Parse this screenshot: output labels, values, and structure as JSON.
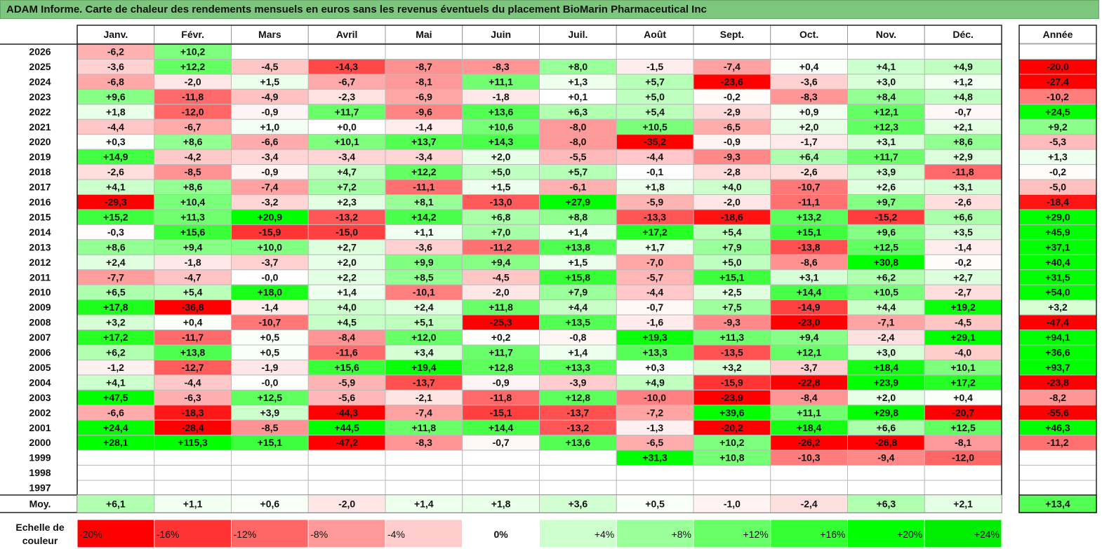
{
  "title": "ADAM Informe. Carte de chaleur des rendements mensuels en euros sans les revenus éventuels du placement BioMarin Pharmaceutical Inc",
  "chart_data": {
    "type": "heatmap",
    "title": "ADAM Informe. Carte de chaleur des rendements mensuels en euros sans les revenus éventuels du placement BioMarin Pharmaceutical Inc",
    "months": [
      "Janv.",
      "Févr.",
      "Mars",
      "Avril",
      "Mai",
      "Juin",
      "Juil.",
      "Août",
      "Sept.",
      "Oct.",
      "Nov.",
      "Déc."
    ],
    "year_header": "Année",
    "rows": [
      {
        "year": "2026",
        "values": [
          "-6,2",
          "+10,2",
          "",
          "",
          "",
          "",
          "",
          "",
          "",
          "",
          "",
          ""
        ],
        "annual": ""
      },
      {
        "year": "2025",
        "values": [
          "-3,6",
          "+12,2",
          "-4,5",
          "-14,3",
          "-8,7",
          "-8,3",
          "+8,0",
          "-1,5",
          "-7,4",
          "+0,4",
          "+4,1",
          "+4,9"
        ],
        "annual": "-20,0"
      },
      {
        "year": "2024",
        "values": [
          "-6,8",
          "-2,0",
          "+1,5",
          "-6,7",
          "-8,1",
          "+11,1",
          "+1,3",
          "+5,7",
          "-23,6",
          "-3,6",
          "+3,0",
          "+1,2"
        ],
        "annual": "-27,4"
      },
      {
        "year": "2023",
        "values": [
          "+9,6",
          "-11,8",
          "-4,9",
          "-2,3",
          "-6,9",
          "-1,8",
          "+0,1",
          "+5,0",
          "-0,2",
          "-8,3",
          "+8,4",
          "+4,8"
        ],
        "annual": "-10,2"
      },
      {
        "year": "2022",
        "values": [
          "+1,8",
          "-12,0",
          "-0,9",
          "+11,7",
          "-9,6",
          "+13,6",
          "+6,3",
          "+5,4",
          "-2,9",
          "+0,9",
          "+12,1",
          "-0,7"
        ],
        "annual": "+24,5"
      },
      {
        "year": "2021",
        "values": [
          "-4,4",
          "-6,7",
          "+1,0",
          "+0,0",
          "-1,4",
          "+10,6",
          "-8,0",
          "+10,5",
          "-6,5",
          "+2,0",
          "+12,3",
          "+2,1"
        ],
        "annual": "+9,2"
      },
      {
        "year": "2020",
        "values": [
          "+0,3",
          "+8,6",
          "-6,6",
          "+10,1",
          "+13,7",
          "+14,3",
          "-8,0",
          "-35,2",
          "-0,9",
          "-1,7",
          "+3,1",
          "+8,6"
        ],
        "annual": "-5,3"
      },
      {
        "year": "2019",
        "values": [
          "+14,9",
          "-4,2",
          "-3,4",
          "-3,4",
          "-3,4",
          "+2,0",
          "-5,5",
          "-4,4",
          "-9,3",
          "+6,4",
          "+11,7",
          "+2,9"
        ],
        "annual": "+1,3"
      },
      {
        "year": "2018",
        "values": [
          "-2,6",
          "-8,5",
          "-0,9",
          "+4,7",
          "+12,2",
          "+5,0",
          "+5,7",
          "-0,1",
          "-2,8",
          "-2,6",
          "+3,9",
          "-11,8"
        ],
        "annual": "-0,2"
      },
      {
        "year": "2017",
        "values": [
          "+4,1",
          "+8,6",
          "-7,4",
          "+7,2",
          "-11,1",
          "+1,5",
          "-6,1",
          "+1,8",
          "+4,0",
          "-10,7",
          "+2,6",
          "+3,1"
        ],
        "annual": "-5,0"
      },
      {
        "year": "2016",
        "values": [
          "-29,3",
          "+10,4",
          "-3,2",
          "+2,3",
          "+8,1",
          "-13,0",
          "+27,9",
          "-5,9",
          "-2,0",
          "-11,1",
          "+9,7",
          "-2,6"
        ],
        "annual": "-18,4"
      },
      {
        "year": "2015",
        "values": [
          "+15,2",
          "+11,3",
          "+20,9",
          "-13,2",
          "+14,2",
          "+6,8",
          "+8,8",
          "-13,3",
          "-18,6",
          "+13,2",
          "-15,2",
          "+6,6"
        ],
        "annual": "+29,0"
      },
      {
        "year": "2014",
        "values": [
          "-0,3",
          "+15,6",
          "-15,9",
          "-15,0",
          "+1,1",
          "+7,0",
          "+1,4",
          "+17,2",
          "+5,4",
          "+15,1",
          "+9,6",
          "+3,5"
        ],
        "annual": "+45,9"
      },
      {
        "year": "2013",
        "values": [
          "+8,6",
          "+9,4",
          "+10,0",
          "+2,7",
          "-3,6",
          "-11,2",
          "+13,8",
          "+1,7",
          "+7,9",
          "-13,8",
          "+12,5",
          "-1,4"
        ],
        "annual": "+37,1"
      },
      {
        "year": "2012",
        "values": [
          "+2,4",
          "-1,8",
          "-3,7",
          "+2,0",
          "+9,9",
          "+9,4",
          "+1,5",
          "-7,0",
          "+5,0",
          "-8,6",
          "+30,8",
          "-0,2"
        ],
        "annual": "+40,4"
      },
      {
        "year": "2011",
        "values": [
          "-7,7",
          "-4,7",
          "-0,0",
          "+2,2",
          "+8,5",
          "-4,5",
          "+15,8",
          "-5,7",
          "+15,1",
          "+3,1",
          "+6,2",
          "+2,7"
        ],
        "annual": "+31,5"
      },
      {
        "year": "2010",
        "values": [
          "+6,5",
          "+5,4",
          "+18,0",
          "+1,4",
          "-10,1",
          "-2,0",
          "+7,9",
          "-4,4",
          "+2,5",
          "+14,4",
          "+10,5",
          "-2,7"
        ],
        "annual": "+54,0"
      },
      {
        "year": "2009",
        "values": [
          "+17,8",
          "-36,8",
          "-1,4",
          "+4,0",
          "+2,4",
          "+11,8",
          "+4,4",
          "-0,7",
          "+7,5",
          "-14,9",
          "+4,4",
          "+19,2"
        ],
        "annual": "+3,2"
      },
      {
        "year": "2008",
        "values": [
          "+3,2",
          "+0,4",
          "-10,7",
          "+4,5",
          "+5,1",
          "-25,3",
          "+13,5",
          "-1,6",
          "-9,3",
          "-23,0",
          "-7,1",
          "-4,5"
        ],
        "annual": "-47,4"
      },
      {
        "year": "2007",
        "values": [
          "+17,2",
          "-11,7",
          "+0,5",
          "-8,4",
          "+12,0",
          "+0,2",
          "-0,8",
          "+19,3",
          "+11,3",
          "+9,4",
          "-2,4",
          "+29,1"
        ],
        "annual": "+94,1"
      },
      {
        "year": "2006",
        "values": [
          "+6,2",
          "+13,8",
          "+0,5",
          "-11,6",
          "+3,4",
          "+11,7",
          "+1,4",
          "+13,3",
          "-13,5",
          "+12,1",
          "+3,0",
          "-4,0"
        ],
        "annual": "+36,6"
      },
      {
        "year": "2005",
        "values": [
          "-1,2",
          "-12,7",
          "-1,9",
          "+15,6",
          "+19,4",
          "+12,8",
          "+13,3",
          "+0,3",
          "+3,2",
          "-3,7",
          "+18,4",
          "+10,1"
        ],
        "annual": "+93,7"
      },
      {
        "year": "2004",
        "values": [
          "+4,1",
          "-4,4",
          "-0,0",
          "-5,9",
          "-13,7",
          "-0,9",
          "-3,9",
          "+4,9",
          "-15,9",
          "-22,8",
          "+23,9",
          "+17,2"
        ],
        "annual": "-23,8"
      },
      {
        "year": "2003",
        "values": [
          "+47,5",
          "-6,3",
          "+12,5",
          "-5,6",
          "-2,1",
          "-11,8",
          "+12,8",
          "-10,0",
          "-23,9",
          "-8,4",
          "+2,0",
          "+0,4"
        ],
        "annual": "-8,2"
      },
      {
        "year": "2002",
        "values": [
          "-6,6",
          "-18,3",
          "+3,9",
          "-44,3",
          "-7,4",
          "-15,1",
          "-13,7",
          "-7,2",
          "+39,6",
          "+11,1",
          "+29,8",
          "-20,7"
        ],
        "annual": "-55,6"
      },
      {
        "year": "2001",
        "values": [
          "+24,4",
          "-28,4",
          "-8,5",
          "+44,5",
          "+11,8",
          "+14,4",
          "-13,2",
          "-1,3",
          "-20,2",
          "+18,4",
          "+6,6",
          "+12,5"
        ],
        "annual": "+46,3"
      },
      {
        "year": "2000",
        "values": [
          "+28,1",
          "+115,3",
          "+15,1",
          "-47,2",
          "-8,3",
          "-0,7",
          "+13,6",
          "-6,5",
          "+10,2",
          "-26,2",
          "-26,8",
          "-8,1"
        ],
        "annual": "-11,2"
      },
      {
        "year": "1999",
        "values": [
          "",
          "",
          "",
          "",
          "",
          "",
          "",
          "+31,3",
          "+10,8",
          "-10,3",
          "-9,4",
          "-12,0"
        ],
        "annual": ""
      },
      {
        "year": "1998",
        "values": [
          "",
          "",
          "",
          "",
          "",
          "",
          "",
          "",
          "",
          "",
          "",
          ""
        ],
        "annual": ""
      },
      {
        "year": "1997",
        "values": [
          "",
          "",
          "",
          "",
          "",
          "",
          "",
          "",
          "",
          "",
          "",
          ""
        ],
        "annual": ""
      }
    ],
    "average": {
      "label": "Moy.",
      "values": [
        "+6,1",
        "+1,1",
        "+0,6",
        "-2,0",
        "+1,4",
        "+1,8",
        "+3,6",
        "+0,5",
        "-1,0",
        "-2,4",
        "+6,3",
        "+2,1"
      ],
      "annual": "+13,4"
    },
    "scale": {
      "label_line1": "Echelle de",
      "label_line2": "couleur",
      "steps": [
        {
          "label": "-20%",
          "value": -20,
          "color": "#ff0000"
        },
        {
          "label": "-16%",
          "value": -16,
          "color": "#ff3333"
        },
        {
          "label": "-12%",
          "value": -12,
          "color": "#ff6666"
        },
        {
          "label": "-8%",
          "value": -8,
          "color": "#ff9999"
        },
        {
          "label": "-4%",
          "value": -4,
          "color": "#ffcccc"
        },
        {
          "label": "0%",
          "value": 0,
          "color": "#ffffff"
        },
        {
          "label": "+4%",
          "value": 4,
          "color": "#ccffcc"
        },
        {
          "label": "+8%",
          "value": 8,
          "color": "#99ff99"
        },
        {
          "label": "+12%",
          "value": 12,
          "color": "#66ff66"
        },
        {
          "label": "+16%",
          "value": 16,
          "color": "#33ff33"
        },
        {
          "label": "+20%",
          "value": 20,
          "color": "#00ff00"
        },
        {
          "label": "+24%",
          "value": 24,
          "color": "#00ee00"
        }
      ]
    }
  }
}
